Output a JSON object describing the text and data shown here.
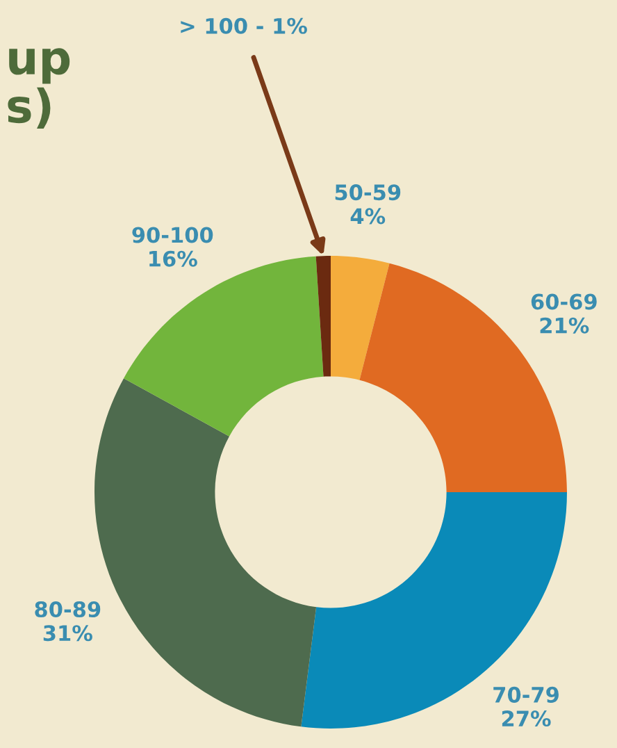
{
  "chart_data": {
    "type": "donut",
    "title": "up\ns)",
    "categories": [
      "50-59",
      "60-69",
      "70-79",
      "80-89",
      "90-100",
      "> 100 - 1%"
    ],
    "values": [
      4,
      21,
      27,
      31,
      16,
      1
    ],
    "colors": [
      "#f4ac3c",
      "#e06a22",
      "#0a8ab8",
      "#4e6b4e",
      "#72b53c",
      "#6b2a10"
    ],
    "value_labels": [
      "4%",
      "21%",
      "27%",
      "31%",
      "16%",
      null
    ]
  }
}
